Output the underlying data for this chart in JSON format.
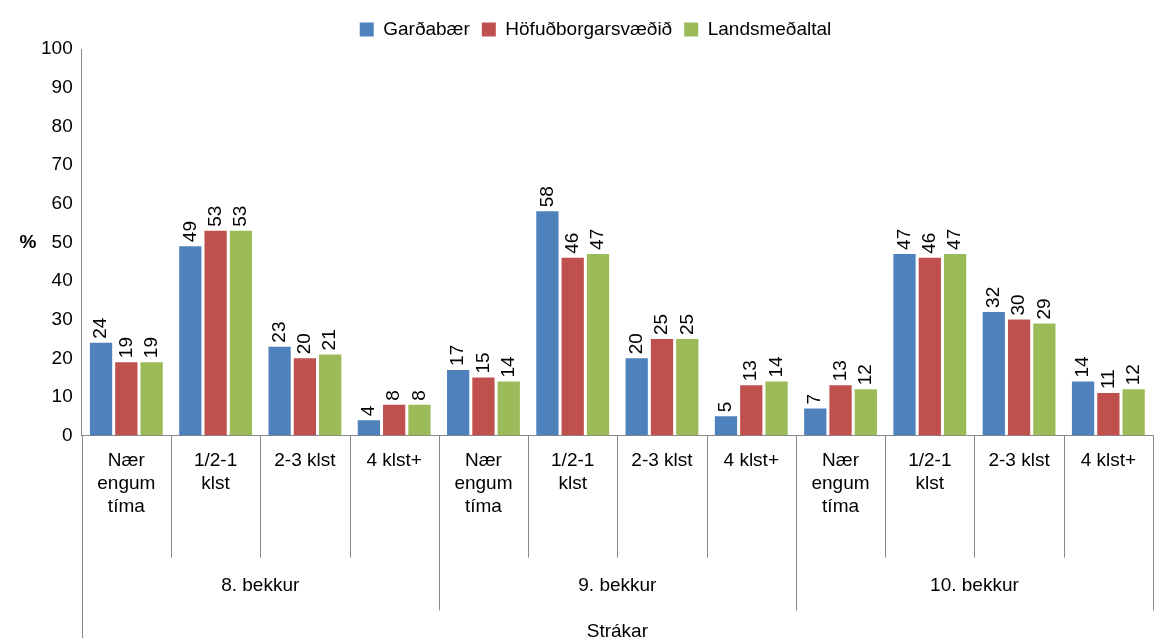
{
  "chart_data": {
    "type": "bar",
    "categories": [
      "Nær engum tíma",
      "1/2-1 klst",
      "2-3 klst",
      "4 klst+",
      "Nær engum tíma",
      "1/2-1 klst",
      "2-3 klst",
      "4 klst+",
      "Nær engum tíma",
      "1/2-1 klst",
      "2-3 klst",
      "4 klst+"
    ],
    "series": [
      {
        "name": "Garðabær",
        "color": "#4f81bd",
        "values": [
          24,
          49,
          23,
          4,
          17,
          58,
          20,
          5,
          7,
          47,
          32,
          14
        ]
      },
      {
        "name": "Höfuðborgarsvæðið",
        "color": "#c0504d",
        "values": [
          19,
          53,
          20,
          8,
          15,
          46,
          25,
          13,
          13,
          46,
          30,
          11
        ]
      },
      {
        "name": "Landsmeðaltal",
        "color": "#9bbb59",
        "values": [
          19,
          53,
          21,
          8,
          14,
          47,
          25,
          14,
          12,
          47,
          29,
          12
        ]
      }
    ],
    "ylabel": "%",
    "annotations": [
      "8. bekkur",
      "9. bekkur",
      "10. bekkur",
      "Strákar"
    ],
    "ylim": [
      0,
      100
    ],
    "yticks": [
      0,
      10,
      20,
      30,
      40,
      50,
      60,
      70,
      80,
      90,
      100
    ],
    "grid": false,
    "legend": "top",
    "data_labels": true
  }
}
